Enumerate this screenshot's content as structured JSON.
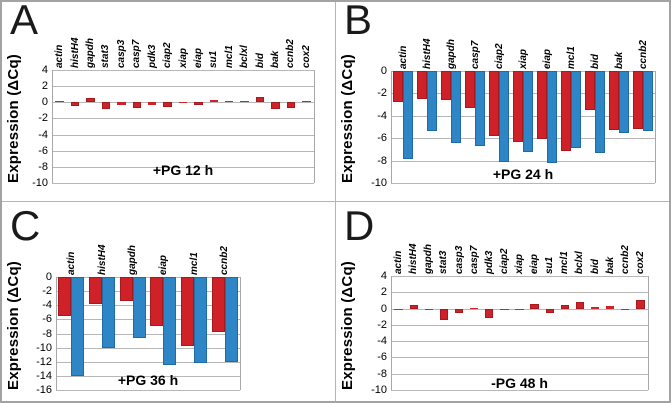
{
  "figure": {
    "description": "Four-panel bar figure of gene expression changes",
    "ylabel": "Expression (ΔCq)"
  },
  "colors": {
    "red_series": "#cf2128",
    "red_border": "#a5191f",
    "blue_series": "#2e86c6",
    "blue_border": "#1f6ba3",
    "gridline": "#b7b7b7"
  },
  "chart_data": [
    {
      "panel": "A",
      "type": "bar",
      "title": "+PG 12 h",
      "ylabel": "Expression (ΔCq)",
      "ymax": 4,
      "ymin": -10,
      "ytick_step": 2,
      "grid": true,
      "legend": "none",
      "categories": [
        "actin",
        "histH4",
        "gapdh",
        "stat3",
        "casp3",
        "casp7",
        "pdk3",
        "ciap2",
        "xiap",
        "eiap",
        "su1",
        "mcl1",
        "bclxl",
        "bid",
        "bak",
        "ccnb2",
        "cox2"
      ],
      "series": [
        {
          "name": "red",
          "color": "#cf2128",
          "values": [
            0.2,
            -0.4,
            0.5,
            -0.85,
            -0.3,
            -0.65,
            -0.3,
            -0.55,
            -0.1,
            -0.35,
            0.3,
            0.15,
            0.15,
            0.65,
            -0.85,
            -0.75,
            0.2
          ]
        }
      ]
    },
    {
      "panel": "B",
      "type": "bar",
      "title": "+PG 24 h",
      "ylabel": "Expression (ΔCq)",
      "ymax": 0,
      "ymin": -10,
      "ytick_step": 2,
      "grid": true,
      "legend": "none",
      "categories": [
        "actin",
        "histH4",
        "gapdh",
        "casp7",
        "ciap2",
        "xiap",
        "eiap",
        "mcl1",
        "bid",
        "bak",
        "ccnb2"
      ],
      "series": [
        {
          "name": "red",
          "color": "#cf2128",
          "values": [
            -2.8,
            -2.5,
            -2.6,
            -3.3,
            -5.8,
            -6.3,
            -6.1,
            -7.1,
            -3.5,
            -5.3,
            -5.2
          ]
        },
        {
          "name": "blue",
          "color": "#2e86c6",
          "values": [
            -7.9,
            -5.4,
            -6.4,
            -6.7,
            -8.1,
            -7.2,
            -8.2,
            -6.9,
            -7.3,
            -5.5,
            -5.4
          ]
        }
      ]
    },
    {
      "panel": "C",
      "type": "bar",
      "title": "+PG 36 h",
      "ylabel": "Expression (ΔCq)",
      "ymax": 0,
      "ymin": -16,
      "ytick_step": 2,
      "grid": true,
      "legend": "none",
      "categories": [
        "actin",
        "histH4",
        "gapdh",
        "eiap",
        "mcl1",
        "ccnb2"
      ],
      "series": [
        {
          "name": "red",
          "color": "#cf2128",
          "values": [
            -5.5,
            -3.8,
            -3.4,
            -6.9,
            -9.7,
            -7.8
          ]
        },
        {
          "name": "blue",
          "color": "#2e86c6",
          "values": [
            -14.0,
            -10.1,
            -8.6,
            -12.4,
            -12.2,
            -12.1
          ]
        }
      ]
    },
    {
      "panel": "D",
      "type": "bar",
      "title": "-PG 48 h",
      "ylabel": "Expression (ΔCq)",
      "ymax": 4,
      "ymin": -10,
      "ytick_step": 2,
      "grid": true,
      "legend": "none",
      "categories": [
        "actin",
        "histH4",
        "gapdh",
        "stat3",
        "casp3",
        "casp7",
        "pdk3",
        "ciap2",
        "xiap",
        "eiap",
        "su1",
        "mcl1",
        "bclxl",
        "bid",
        "bak",
        "ccnb2",
        "cox2"
      ],
      "series": [
        {
          "name": "red",
          "color": "#cf2128",
          "values": [
            -0.1,
            0.4,
            -0.15,
            -1.4,
            -0.5,
            0.1,
            -1.2,
            -0.1,
            0.0,
            0.6,
            -0.5,
            0.5,
            0.75,
            0.25,
            0.3,
            -0.05,
            1.0
          ]
        }
      ]
    }
  ]
}
